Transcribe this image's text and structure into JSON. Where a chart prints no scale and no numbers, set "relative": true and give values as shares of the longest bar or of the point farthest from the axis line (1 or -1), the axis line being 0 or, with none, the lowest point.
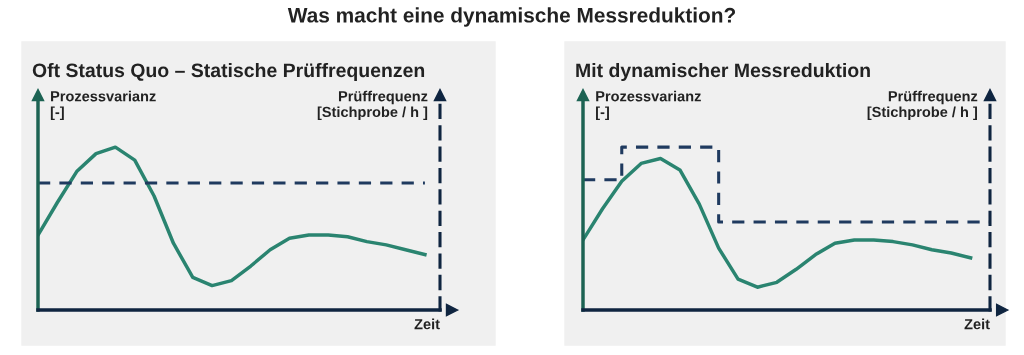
{
  "chart_data": [
    {
      "type": "line",
      "title": "Oft Status Quo – Statische Prüffrequenzen",
      "annotations": [
        "Was macht eine dynamische Messreduktion?"
      ],
      "ylabel": "Prozessvarianz\n[-]",
      "y2label": "Prüffrequenz\n[Stichprobe / h ]",
      "xlabel": "Zeit",
      "relative": true,
      "categories": [
        null,
        null,
        null,
        null,
        null,
        null,
        null,
        null,
        null,
        null,
        null,
        null,
        null,
        null,
        null,
        null,
        null,
        null,
        null,
        null,
        null
      ],
      "series": [
        {
          "color": "#2a8470",
          "line_style": "solid",
          "values": [
            0.46,
            0.66,
            0.85,
            0.96,
            1,
            0.92,
            0.7,
            0.41,
            0.2,
            0.15,
            0.18,
            0.27,
            0.37,
            0.44,
            0.46,
            0.46,
            0.45,
            0.42,
            0.4,
            0.37,
            0.34
          ]
        },
        {
          "type": "step",
          "color": "#1f3a5f",
          "line_style": "dashed",
          "values": [
            0.78,
            0.78,
            0.78,
            0.78,
            0.78,
            0.78,
            0.78,
            0.78,
            0.78,
            0.78,
            0.78,
            0.78,
            0.78,
            0.78,
            0.78,
            0.78,
            0.78,
            0.78,
            0.78,
            0.78,
            0.78
          ]
        }
      ]
    },
    {
      "type": "line",
      "title": "Mit dynamischer Messreduktion",
      "ylabel": "Prozessvarianz\n[-]",
      "y2label": "Prüffrequenz\n[Stichprobe / h ]",
      "xlabel": "Zeit",
      "relative": true,
      "categories": [
        null,
        null,
        null,
        null,
        null,
        null,
        null,
        null,
        null,
        null,
        null,
        null,
        null,
        null,
        null,
        null,
        null,
        null,
        null,
        null,
        null,
        null
      ],
      "series": [
        {
          "color": "#2a8470",
          "line_style": "solid",
          "values": [
            0.43,
            0.62,
            0.79,
            0.9,
            0.93,
            0.86,
            0.65,
            0.38,
            0.19,
            0.14,
            0.17,
            0.25,
            0.34,
            0.41,
            0.43,
            0.43,
            0.42,
            0.4,
            0.37,
            0.35,
            0.32,
            null
          ]
        },
        {
          "type": "step",
          "color": "#1f3a5f",
          "line_style": "dashed",
          "values": [
            0.8,
            0.8,
            1,
            1,
            1,
            1,
            1,
            0.54,
            0.54,
            0.54,
            0.54,
            0.54,
            0.54,
            0.54,
            0.54,
            0.54,
            0.54,
            0.54,
            0.54,
            0.54,
            0.54,
            0.54
          ]
        }
      ]
    }
  ]
}
